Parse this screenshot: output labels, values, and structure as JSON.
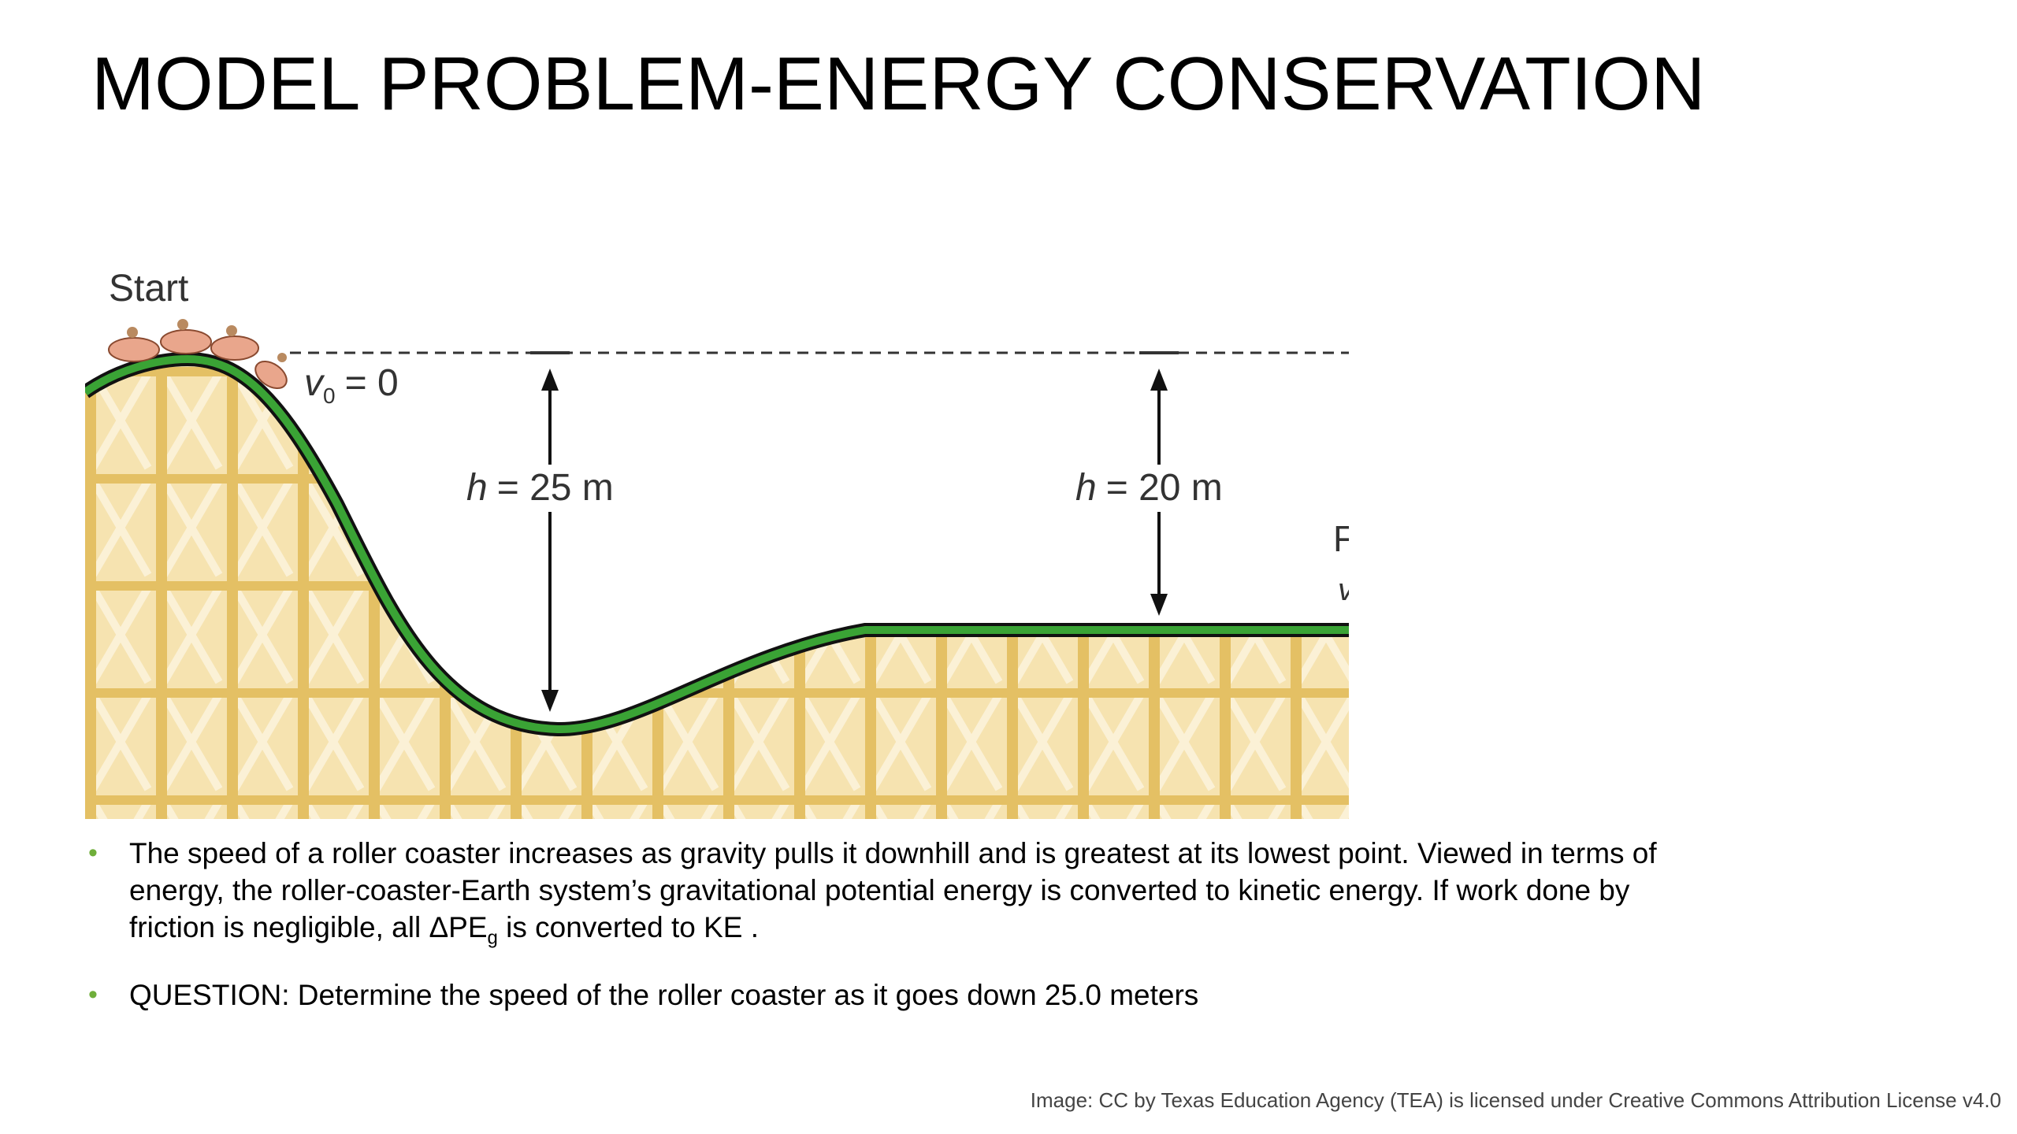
{
  "slide": {
    "title": "MODEL PROBLEM-ENERGY CONSERVATION"
  },
  "figure": {
    "start_label": "Start",
    "v0_label": "= 0",
    "v0_symbol": "v",
    "v0_sub": "0",
    "h1_symbol": "h",
    "h1_label": "= 25 m",
    "h2_symbol": "h",
    "h2_label": "= 20 m",
    "cut_label_1": "F",
    "cut_label_2": "v",
    "colors": {
      "track": "#3aa335",
      "track_outline": "#111111",
      "scaffold": "#f2d99a",
      "beam": "#e2bd55",
      "cart": "#e9a68c"
    }
  },
  "bullets": [
    {
      "text_a": "The speed of a roller coaster increases as gravity pulls it downhill and is greatest at its lowest point. Viewed in terms of energy, the roller-coaster-Earth system’s gravitational potential energy is converted to kinetic energy. If work done by friction is negligible, all ΔPE",
      "sub": "g",
      "text_b": " is converted to KE ."
    },
    {
      "text_a": "QUESTION: Determine the speed of the roller coaster as it goes down 25.0 meters"
    }
  ],
  "credit": "Image: CC by Texas Education Agency (TEA) is licensed under Creative Commons Attribution License v4.0"
}
